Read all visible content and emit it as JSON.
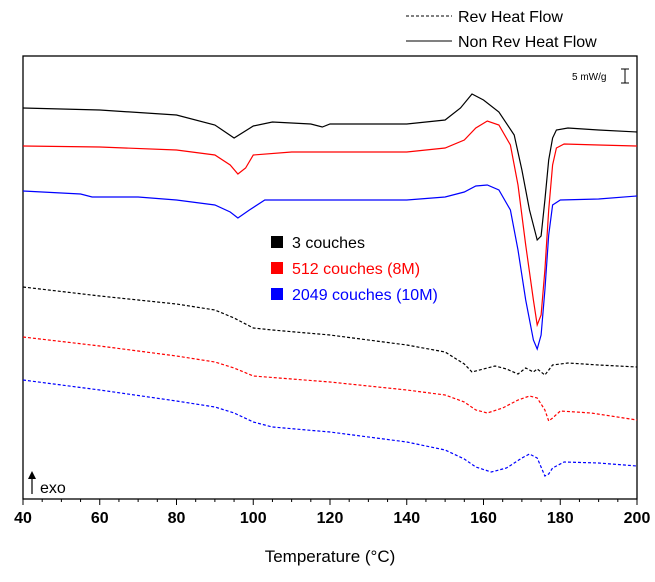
{
  "chart_data": {
    "type": "line",
    "xlabel": "Temperature (°C)",
    "ylabel": "",
    "xlim": [
      40,
      200
    ],
    "xticks": [
      40,
      60,
      80,
      100,
      120,
      140,
      160,
      180,
      200
    ],
    "line_style_legend": [
      {
        "name": "Rev Heat Flow",
        "dash": "dashed"
      },
      {
        "name": "Non Rev Heat Flow",
        "dash": "solid"
      }
    ],
    "legend_placement": "center",
    "scale_bar_label": "5 mW/g",
    "exo_label": "exo",
    "colors": {
      "3 couches": "#000000",
      "512 couches (8M)": "#ff0000",
      "2049 couches (10M)": "#0000ff"
    },
    "series": [
      {
        "name": "3 couches",
        "color": "#000000",
        "style": "solid",
        "points": [
          [
            40,
            108
          ],
          [
            60,
            110
          ],
          [
            80,
            115
          ],
          [
            90,
            125
          ],
          [
            95,
            138
          ],
          [
            100,
            126
          ],
          [
            105,
            122
          ],
          [
            115,
            124
          ],
          [
            118,
            127
          ],
          [
            120,
            124
          ],
          [
            140,
            124
          ],
          [
            150,
            120
          ],
          [
            154,
            108
          ],
          [
            157,
            94
          ],
          [
            160,
            100
          ],
          [
            164,
            112
          ],
          [
            168,
            135
          ],
          [
            170,
            170
          ],
          [
            172,
            210
          ],
          [
            174,
            240
          ],
          [
            175,
            236
          ],
          [
            176,
            200
          ],
          [
            177,
            160
          ],
          [
            178,
            138
          ],
          [
            179,
            130
          ],
          [
            182,
            128
          ],
          [
            190,
            130
          ],
          [
            200,
            132
          ]
        ]
      },
      {
        "name": "512 couches (8M)",
        "color": "#ff0000",
        "style": "solid",
        "points": [
          [
            40,
            146
          ],
          [
            60,
            147
          ],
          [
            80,
            150
          ],
          [
            90,
            155
          ],
          [
            94,
            165
          ],
          [
            96,
            174
          ],
          [
            98,
            168
          ],
          [
            100,
            155
          ],
          [
            110,
            152
          ],
          [
            140,
            152
          ],
          [
            150,
            148
          ],
          [
            155,
            140
          ],
          [
            158,
            128
          ],
          [
            161,
            121
          ],
          [
            164,
            125
          ],
          [
            167,
            145
          ],
          [
            169,
            185
          ],
          [
            171,
            245
          ],
          [
            173,
            300
          ],
          [
            174,
            325
          ],
          [
            175,
            315
          ],
          [
            176,
            270
          ],
          [
            177,
            210
          ],
          [
            178,
            165
          ],
          [
            179,
            148
          ],
          [
            181,
            144
          ],
          [
            190,
            145
          ],
          [
            200,
            146
          ]
        ]
      },
      {
        "name": "2049 couches (10M)",
        "color": "#0000ff",
        "style": "solid",
        "points": [
          [
            40,
            191
          ],
          [
            55,
            194
          ],
          [
            58,
            197
          ],
          [
            70,
            197
          ],
          [
            80,
            200
          ],
          [
            90,
            205
          ],
          [
            94,
            212
          ],
          [
            96,
            218
          ],
          [
            99,
            210
          ],
          [
            103,
            200
          ],
          [
            120,
            200
          ],
          [
            140,
            200
          ],
          [
            150,
            197
          ],
          [
            155,
            192
          ],
          [
            158,
            186
          ],
          [
            161,
            185
          ],
          [
            164,
            190
          ],
          [
            167,
            210
          ],
          [
            169,
            250
          ],
          [
            171,
            300
          ],
          [
            173,
            340
          ],
          [
            174,
            349
          ],
          [
            175,
            335
          ],
          [
            176,
            290
          ],
          [
            177,
            235
          ],
          [
            178,
            205
          ],
          [
            180,
            200
          ],
          [
            190,
            199
          ],
          [
            200,
            196
          ]
        ]
      },
      {
        "name": "3 couches",
        "color": "#000000",
        "style": "dashed",
        "points": [
          [
            40,
            287
          ],
          [
            60,
            296
          ],
          [
            80,
            304
          ],
          [
            90,
            310
          ],
          [
            95,
            318
          ],
          [
            100,
            328
          ],
          [
            105,
            330
          ],
          [
            120,
            335
          ],
          [
            140,
            345
          ],
          [
            150,
            352
          ],
          [
            155,
            364
          ],
          [
            157,
            372
          ],
          [
            160,
            369
          ],
          [
            163,
            366
          ],
          [
            166,
            369
          ],
          [
            169,
            374
          ],
          [
            171,
            368
          ],
          [
            173,
            372
          ],
          [
            174,
            369
          ],
          [
            175,
            372
          ],
          [
            176,
            375
          ],
          [
            178,
            365
          ],
          [
            182,
            363
          ],
          [
            190,
            365
          ],
          [
            200,
            367
          ]
        ]
      },
      {
        "name": "512 couches (8M)",
        "color": "#ff0000",
        "style": "dashed",
        "points": [
          [
            40,
            337
          ],
          [
            60,
            346
          ],
          [
            80,
            356
          ],
          [
            90,
            362
          ],
          [
            95,
            368
          ],
          [
            100,
            376
          ],
          [
            120,
            382
          ],
          [
            140,
            390
          ],
          [
            150,
            395
          ],
          [
            155,
            402
          ],
          [
            158,
            410
          ],
          [
            161,
            413
          ],
          [
            165,
            408
          ],
          [
            169,
            400
          ],
          [
            172,
            396
          ],
          [
            174,
            398
          ],
          [
            176,
            410
          ],
          [
            177,
            421
          ],
          [
            178,
            418
          ],
          [
            180,
            411
          ],
          [
            188,
            413
          ],
          [
            200,
            420
          ]
        ]
      },
      {
        "name": "2049 couches (10M)",
        "color": "#0000ff",
        "style": "dashed",
        "points": [
          [
            40,
            380
          ],
          [
            60,
            390
          ],
          [
            80,
            401
          ],
          [
            90,
            407
          ],
          [
            95,
            413
          ],
          [
            100,
            422
          ],
          [
            105,
            427
          ],
          [
            120,
            432
          ],
          [
            140,
            442
          ],
          [
            150,
            450
          ],
          [
            155,
            459
          ],
          [
            158,
            467
          ],
          [
            162,
            472
          ],
          [
            166,
            468
          ],
          [
            170,
            458
          ],
          [
            172,
            454
          ],
          [
            174,
            458
          ],
          [
            176,
            476
          ],
          [
            177,
            474
          ],
          [
            178,
            468
          ],
          [
            181,
            462
          ],
          [
            190,
            463
          ],
          [
            200,
            466
          ]
        ]
      }
    ]
  }
}
